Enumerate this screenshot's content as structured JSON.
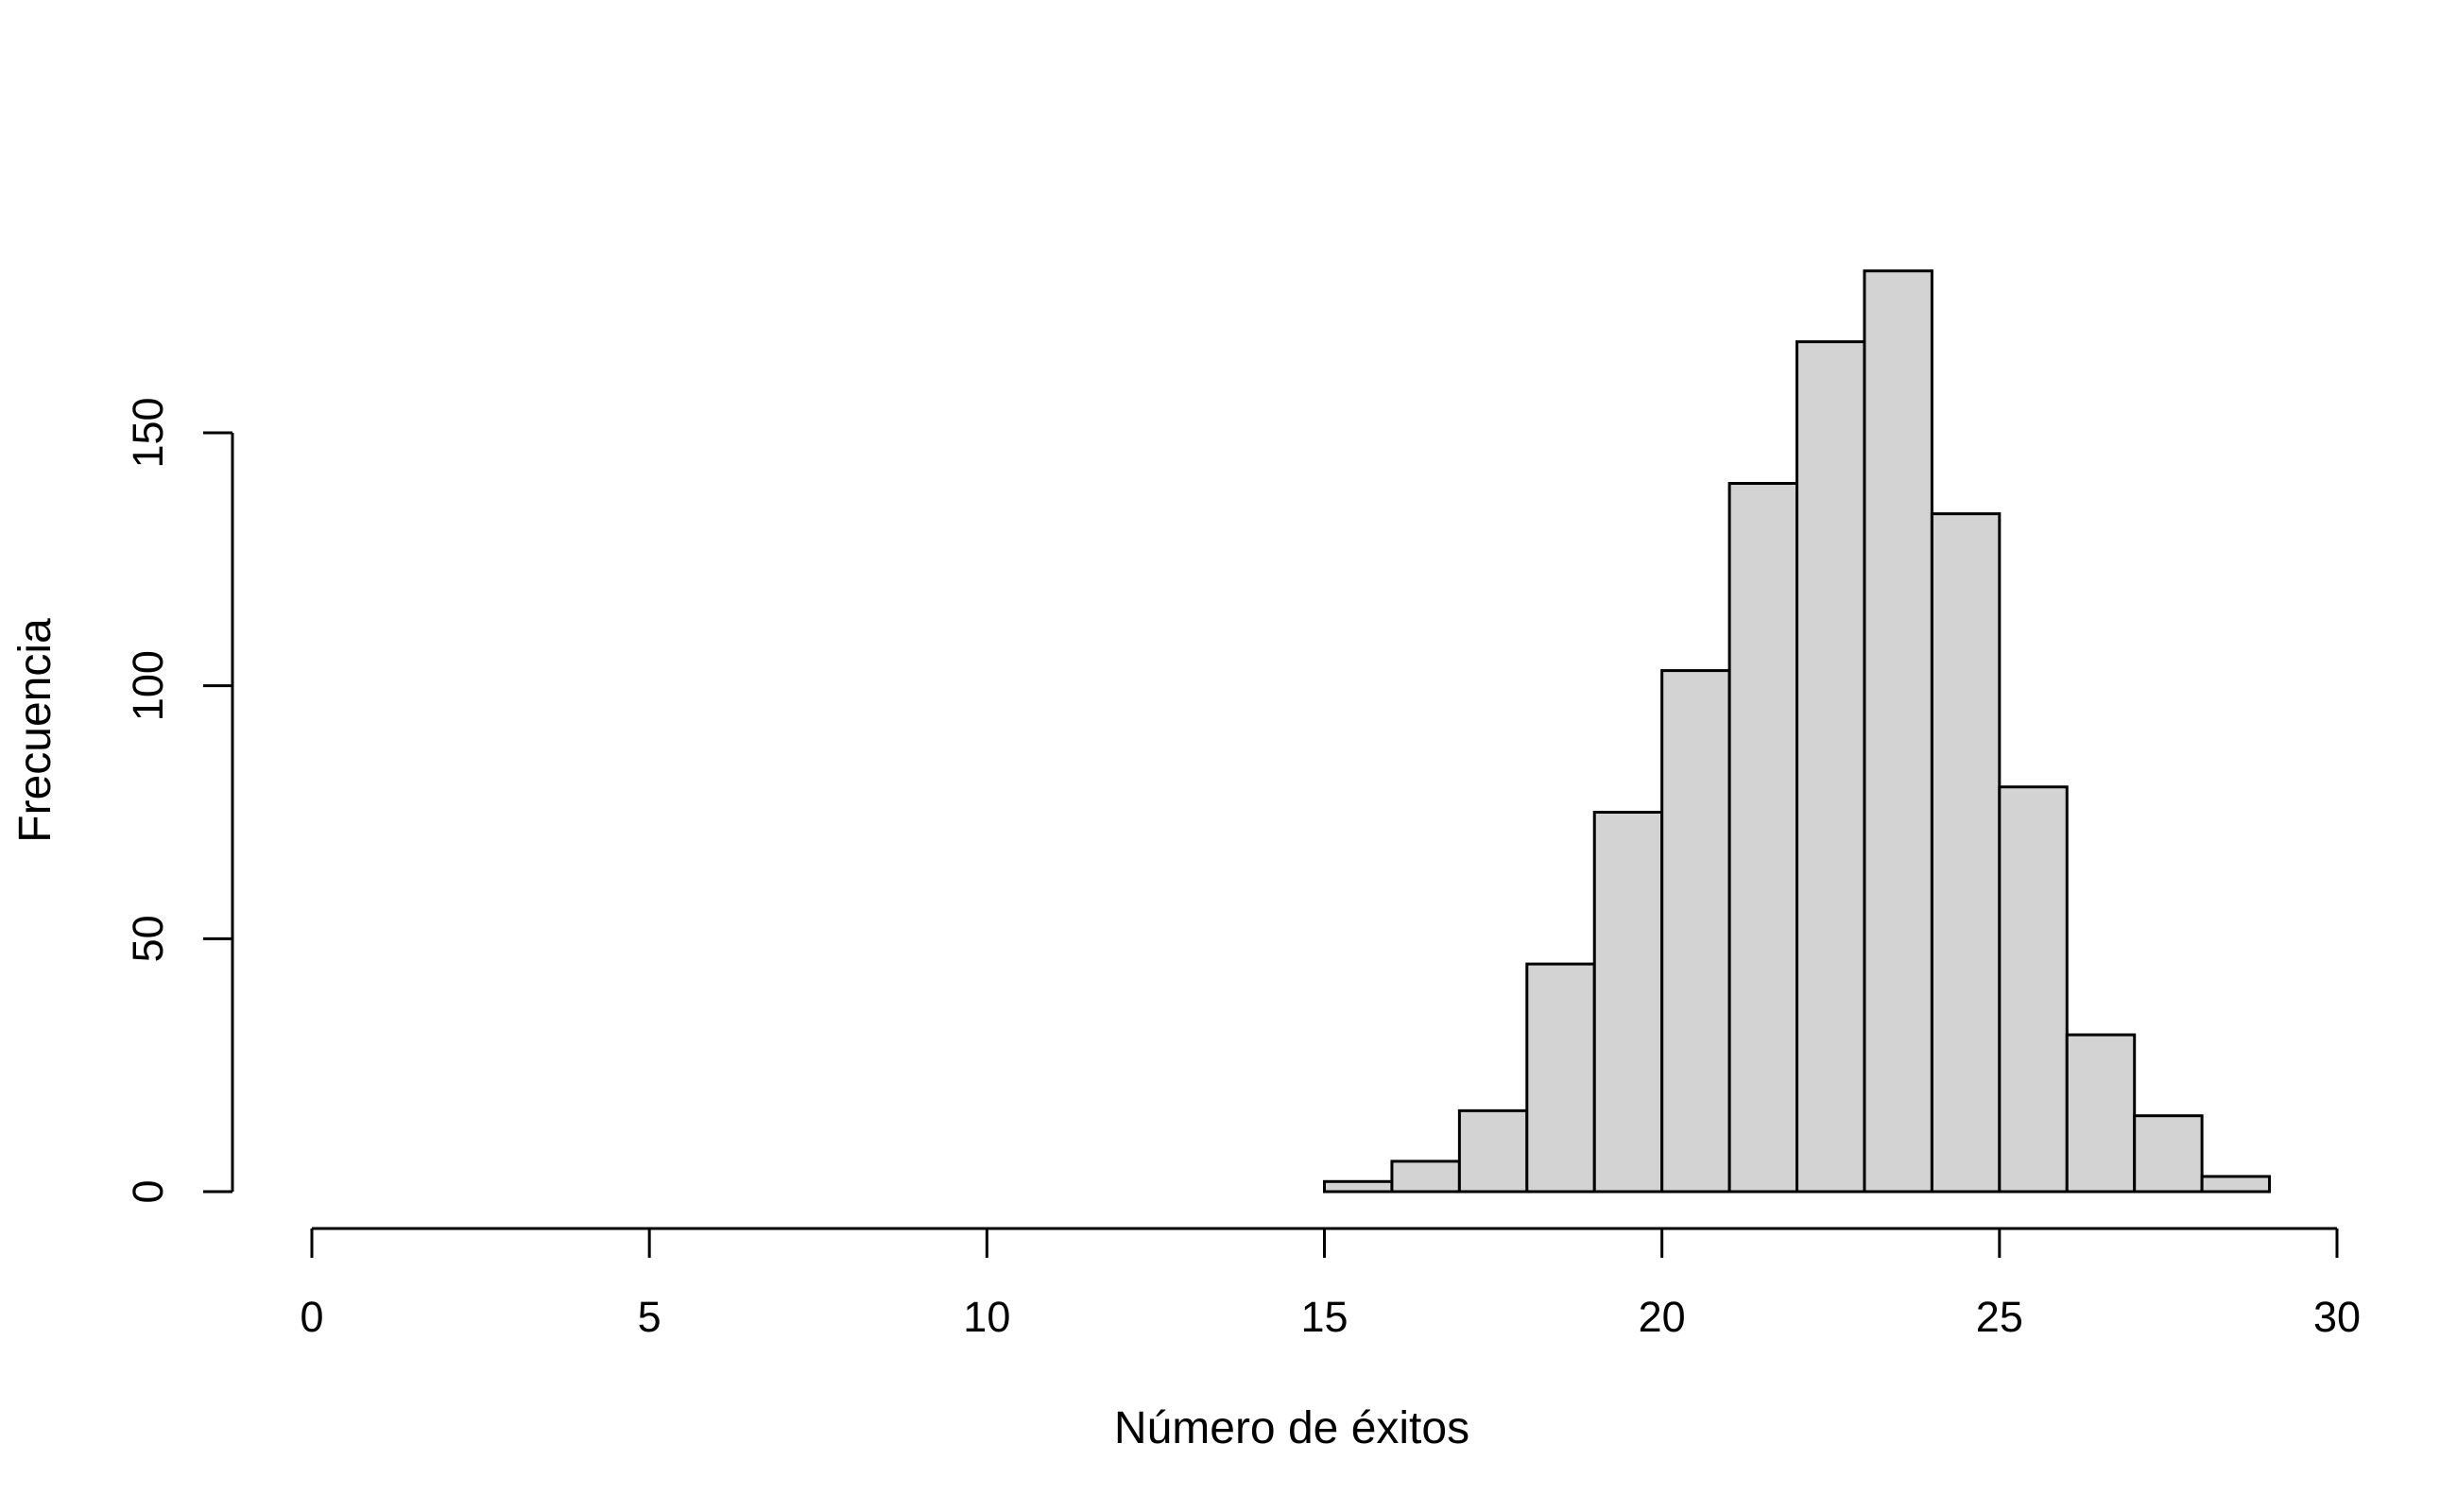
{
  "chart_data": {
    "type": "bar",
    "subtype": "histogram",
    "title": "",
    "xlabel": "Número de éxitos",
    "ylabel": "Frecuencia",
    "xlim": [
      0,
      30
    ],
    "ylim": [
      0,
      180
    ],
    "x_ticks": [
      0,
      5,
      10,
      15,
      20,
      25,
      30
    ],
    "y_ticks": [
      0,
      50,
      100,
      150
    ],
    "bin_edges": [
      0,
      1,
      2,
      3,
      4,
      5,
      6,
      7,
      8,
      9,
      10,
      11,
      12,
      13,
      14,
      15,
      16,
      17,
      18,
      19,
      20,
      21,
      22,
      23,
      24,
      25,
      26,
      27,
      28,
      29
    ],
    "values": [
      0,
      0,
      0,
      0,
      0,
      0,
      0,
      0,
      0,
      0,
      0,
      0,
      0,
      0,
      0,
      2,
      6,
      16,
      45,
      75,
      103,
      140,
      168,
      182,
      134,
      80,
      31,
      15,
      3
    ],
    "bar_color": "#d3d3d3",
    "edge_color": "#000000",
    "grid": false,
    "legend": "none"
  }
}
